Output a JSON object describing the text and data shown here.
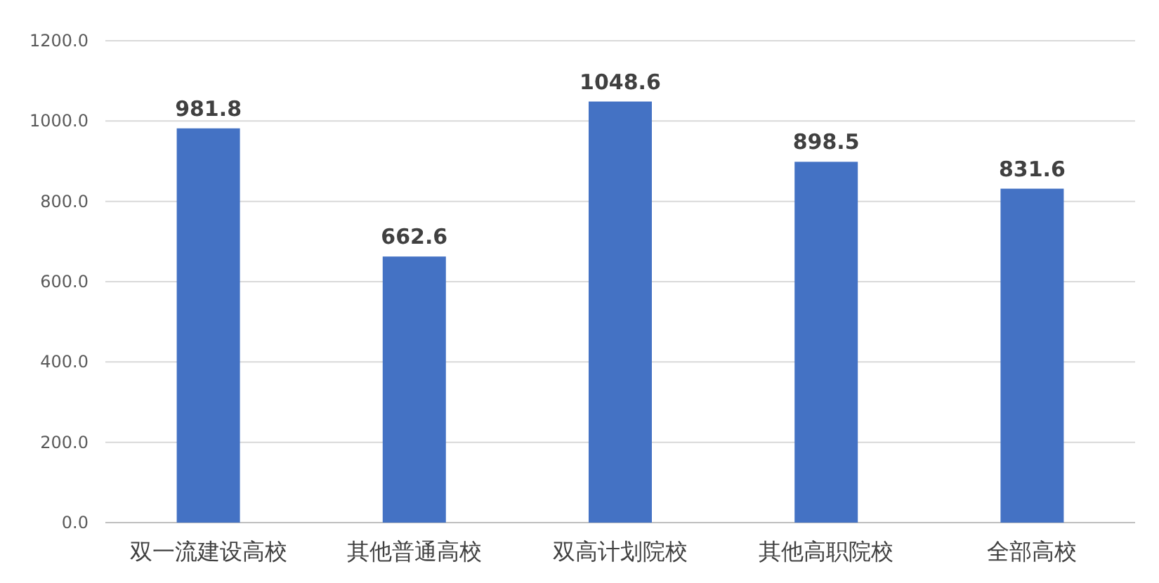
{
  "chart_data": {
    "type": "bar",
    "categories": [
      "双一流建设高校",
      "其他普通高校",
      "双高计划院校",
      "其他高职院校",
      "全部高校"
    ],
    "values": [
      981.8,
      662.6,
      1048.6,
      898.5,
      831.6
    ],
    "color": "#4472c4",
    "ylim": [
      0,
      1200
    ],
    "yticks": [
      {
        "value": 0,
        "label": "0.0"
      },
      {
        "value": 200,
        "label": "200.0"
      },
      {
        "value": 400,
        "label": "400.0"
      },
      {
        "value": 600,
        "label": "600.0"
      },
      {
        "value": 800,
        "label": "800.0"
      },
      {
        "value": 1000,
        "label": "1000.0"
      },
      {
        "value": 1200,
        "label": "1200.0"
      }
    ],
    "grid": "y",
    "data_labels": true
  }
}
